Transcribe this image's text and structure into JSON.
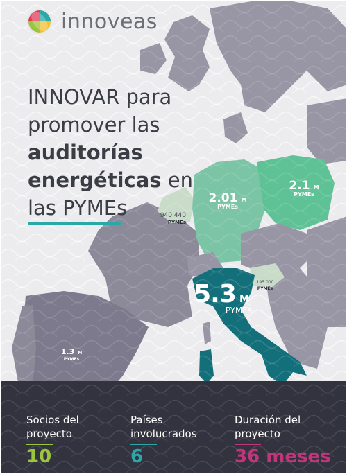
{
  "brand": {
    "name": "innoveas"
  },
  "headline": {
    "line1": "INNOVAR para",
    "line2": "promover las",
    "line3_bold": "auditorías",
    "line4_bold": "energéticas",
    "line4_rest": " en",
    "line5": "las PYMEs"
  },
  "map_labels": {
    "germany": {
      "value": "2.01",
      "unit": "M",
      "sub": "PYMEs"
    },
    "poland": {
      "value": "2.1",
      "unit": "M",
      "sub": "PYMEs"
    },
    "belgium": {
      "value": "940 440",
      "sub": "PYMEs"
    },
    "italy": {
      "value": "5.3",
      "unit": "M",
      "sub": "PYMEs"
    },
    "slovenia": {
      "value": "195 000",
      "sub": "PYMEs"
    },
    "spain": {
      "value": "1.3",
      "unit": "M",
      "sub": "PYMEs"
    }
  },
  "stats": [
    {
      "label1": "Socios del",
      "label2": "proyecto",
      "value": "10",
      "color": "#9bc53d"
    },
    {
      "label1": "Países",
      "label2": "involucrados",
      "value": "6",
      "color": "#2aa7a7"
    },
    {
      "label1": "Duración del",
      "label2": "proyecto",
      "value": "36 meses",
      "color": "#c0367a"
    }
  ],
  "colors": {
    "map_grey": "#8c8a99",
    "germany": "#7cc4a6",
    "poland": "#5fc296",
    "belgium": "#c9dcc9",
    "italy": "#13707a",
    "slovenia": "#c9dcc9",
    "spain": "#7c7a8c",
    "stats_bg": "#33333f"
  }
}
